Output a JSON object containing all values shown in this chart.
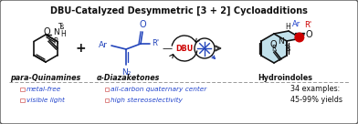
{
  "title": "DBU-Catalyzed Desymmetric [3 + 2] Cycloadditions",
  "title_fontsize": 7.0,
  "bg_color": "#f0f0f0",
  "border_color": "#555555",
  "label_para": "para-Quinamines",
  "label_alpha": "α-Diazaketones",
  "label_hydro": "Hydroindoles",
  "bullet1_left": "metal-free",
  "bullet2_left": "visible light",
  "bullet1_right": "all-carbon quaternary center",
  "bullet2_right": "high stereoselectivity",
  "stats_line1": "34 examples:",
  "stats_line2": "45-99% yields",
  "text_blue": "#2244cc",
  "text_red": "#cc0000",
  "text_black": "#111111",
  "dbu_color": "#cc0000",
  "arrow_color": "#333333",
  "dashed_color": "#999999",
  "product_fill": "#b8dce8",
  "bond_color": "#111111",
  "bond_blue": "#2244bb",
  "bullet_color": "#dd8888"
}
